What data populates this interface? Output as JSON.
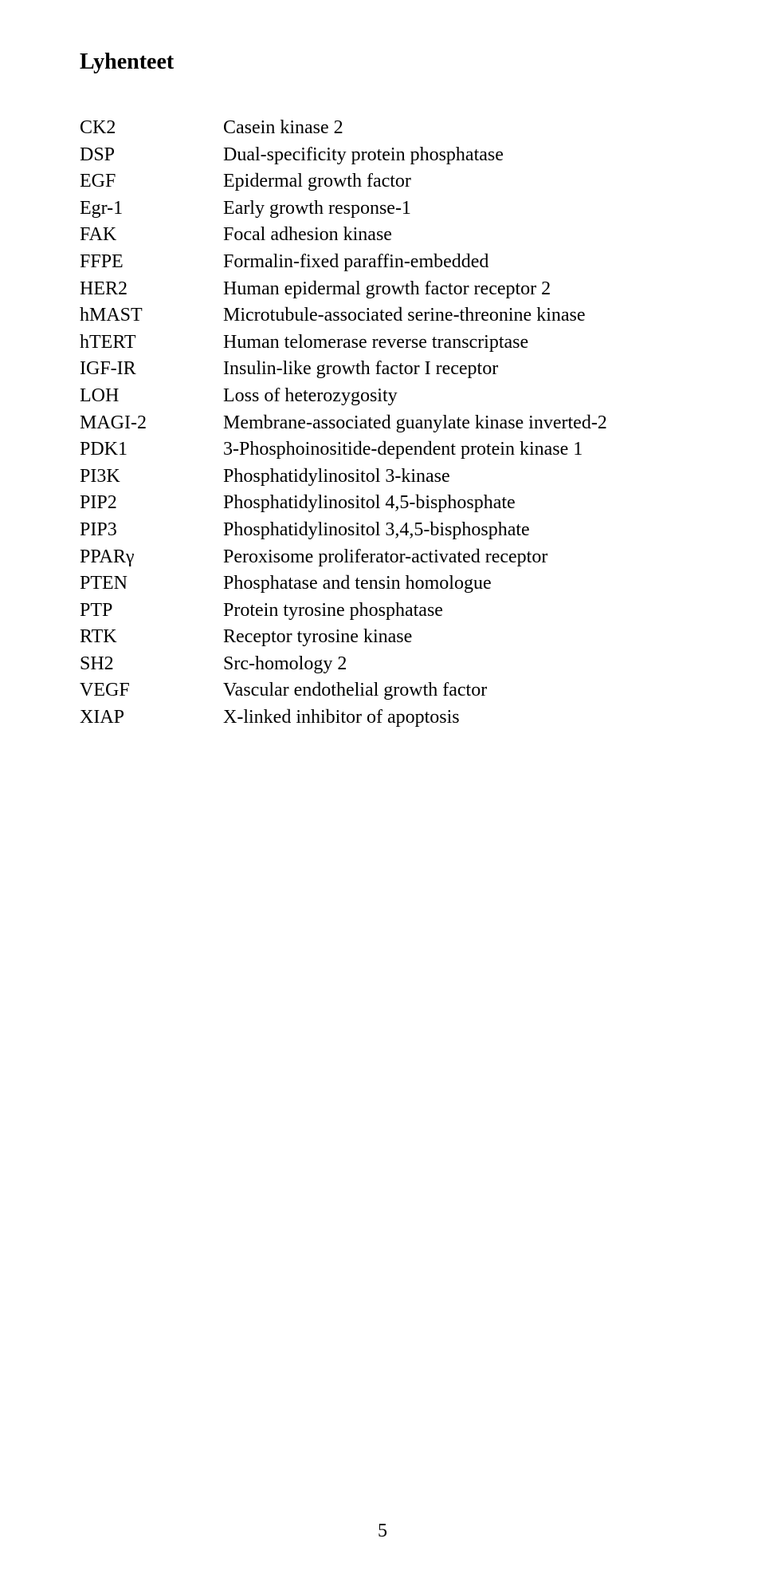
{
  "heading": "Lyhenteet",
  "page_number": "5",
  "abbreviations": [
    {
      "abbr": "CK2",
      "def": "Casein kinase 2"
    },
    {
      "abbr": "DSP",
      "def": "Dual-specificity protein phosphatase"
    },
    {
      "abbr": "EGF",
      "def": "Epidermal growth factor"
    },
    {
      "abbr": "Egr-1",
      "def": "Early growth response-1"
    },
    {
      "abbr": "FAK",
      "def": "Focal adhesion kinase"
    },
    {
      "abbr": "FFPE",
      "def": "Formalin-fixed paraffin-embedded"
    },
    {
      "abbr": "HER2",
      "def": "Human epidermal growth factor receptor 2"
    },
    {
      "abbr": "hMAST",
      "def": "Microtubule-associated serine-threonine kinase"
    },
    {
      "abbr": "hTERT",
      "def": "Human telomerase reverse transcriptase"
    },
    {
      "abbr": "IGF-IR",
      "def": "Insulin-like growth factor I receptor"
    },
    {
      "abbr": "LOH",
      "def": "Loss of heterozygosity"
    },
    {
      "abbr": "MAGI-2",
      "def": "Membrane-associated guanylate kinase inverted-2"
    },
    {
      "abbr": "PDK1",
      "def": "3-Phosphoinositide-dependent protein kinase 1"
    },
    {
      "abbr": "PI3K",
      "def": "Phosphatidylinositol 3-kinase"
    },
    {
      "abbr": "PIP2",
      "def": "Phosphatidylinositol 4,5-bisphosphate"
    },
    {
      "abbr": "PIP3",
      "def": "Phosphatidylinositol 3,4,5-bisphosphate"
    },
    {
      "abbr": "PPARγ",
      "def": "Peroxisome proliferator-activated receptor"
    },
    {
      "abbr": "PTEN",
      "def": "Phosphatase and tensin homologue"
    },
    {
      "abbr": "PTP",
      "def": "Protein tyrosine phosphatase"
    },
    {
      "abbr": "RTK",
      "def": "Receptor tyrosine kinase"
    },
    {
      "abbr": "SH2",
      "def": "Src-homology 2"
    },
    {
      "abbr": "VEGF",
      "def": "Vascular endothelial growth factor"
    },
    {
      "abbr": "XIAP",
      "def": "X-linked inhibitor of apoptosis"
    }
  ]
}
